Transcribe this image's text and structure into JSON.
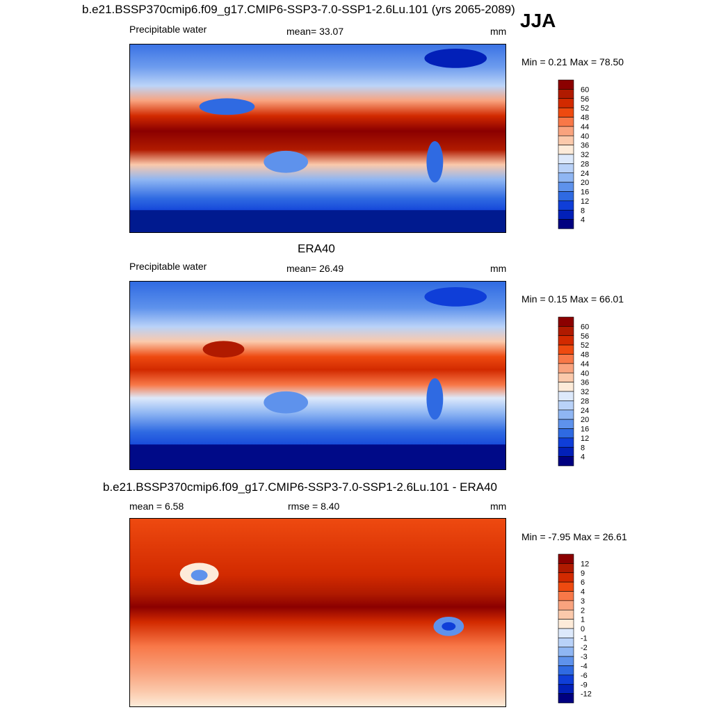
{
  "season": "JJA",
  "panels": [
    {
      "title": "b.e21.BSSP370cmip6.f09_g17.CMIP6-SSP3-7.0-SSP1-2.6Lu.101 (yrs 2065-2089)",
      "left_label": "Precipitable water",
      "center_label": "mean=  33.07",
      "units": "mm",
      "minmax": "Min =   0.21 Max =  78.50",
      "colorbar_labels": [
        "60",
        "56",
        "52",
        "48",
        "44",
        "40",
        "36",
        "32",
        "28",
        "24",
        "20",
        "16",
        "12",
        "8",
        "4"
      ]
    },
    {
      "title": "ERA40",
      "left_label": "Precipitable water",
      "center_label": "mean=  26.49",
      "units": "mm",
      "minmax": "Min =   0.15 Max =  66.01",
      "colorbar_labels": [
        "60",
        "56",
        "52",
        "48",
        "44",
        "40",
        "36",
        "32",
        "28",
        "24",
        "20",
        "16",
        "12",
        "8",
        "4"
      ]
    },
    {
      "title": "b.e21.BSSP370cmip6.f09_g17.CMIP6-SSP3-7.0-SSP1-2.6Lu.101 - ERA40",
      "left_label": "mean =   6.58",
      "center_label": "rmse =   8.40",
      "units": "mm",
      "minmax": "Min =  -7.95 Max =  26.61",
      "colorbar_labels": [
        "12",
        "9",
        "6",
        "4",
        "3",
        "2",
        "1",
        "0",
        "-1",
        "-2",
        "-3",
        "-4",
        "-6",
        "-9",
        "-12"
      ]
    }
  ],
  "colors": {
    "scale": [
      "#8b0000",
      "#b01a00",
      "#d22a00",
      "#ee4a10",
      "#f87848",
      "#f9a37e",
      "#fbc9ab",
      "#fdebd9",
      "#dde9fb",
      "#b9d2f8",
      "#8fb6f3",
      "#5e92ec",
      "#2f6ae2",
      "#0f3ed8",
      "#0220b8",
      "#000080"
    ]
  }
}
